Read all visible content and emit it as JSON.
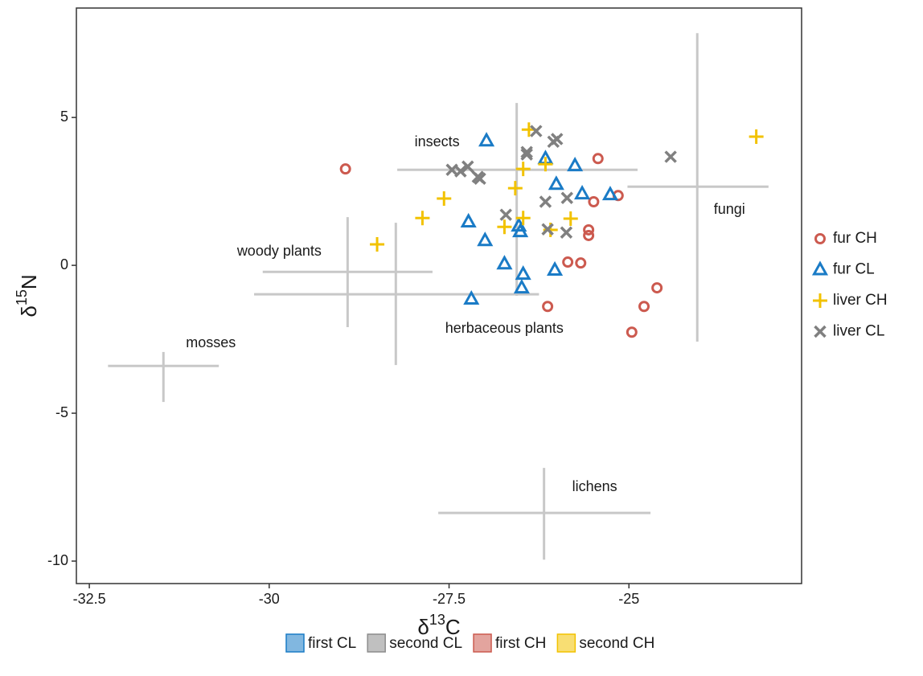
{
  "chart_data": {
    "type": "scatter",
    "xlabel": {
      "symbol": "δ",
      "superscript": "13",
      "element": "C"
    },
    "ylabel": {
      "symbol": "δ",
      "superscript": "15",
      "element": "N"
    },
    "xlim": [
      -32.68,
      -22.6
    ],
    "ylim": [
      -10.76,
      8.7
    ],
    "xticks": [
      -32.5,
      -30,
      -27.5,
      -25
    ],
    "yticks": [
      -10,
      -5,
      0,
      5
    ],
    "grid": false,
    "legend_position": "right",
    "source_color": "#c8c8c8",
    "sources": [
      {
        "label": "mosses",
        "x": -31.47,
        "y": -3.4,
        "xrange": [
          -32.24,
          -30.7
        ],
        "yrange": [
          -4.62,
          -2.93
        ]
      },
      {
        "label": "woody plants",
        "x": -28.91,
        "y": -0.22,
        "xrange": [
          -30.09,
          -27.73
        ],
        "yrange": [
          -2.09,
          1.63
        ]
      },
      {
        "label": "herbaceous plants",
        "x": -28.24,
        "y": -0.98,
        "xrange": [
          -30.21,
          -26.25
        ],
        "yrange": [
          -3.37,
          1.44
        ]
      },
      {
        "label": "insects",
        "x": -26.56,
        "y": 3.23,
        "xrange": [
          -28.22,
          -24.88
        ],
        "yrange": [
          -1.03,
          5.49
        ]
      },
      {
        "label": "fungi",
        "x": -24.05,
        "y": 2.66,
        "xrange": [
          -25.02,
          -23.06
        ],
        "yrange": [
          -2.58,
          7.85
        ]
      },
      {
        "label": "lichens",
        "x": -26.18,
        "y": -8.37,
        "xrange": [
          -27.65,
          -24.7
        ],
        "yrange": [
          -9.95,
          -6.85
        ]
      }
    ],
    "series": [
      {
        "name": "fur CH",
        "color": "#cc5a4f",
        "marker": "circle",
        "x": [
          -28.94,
          -25.43,
          -25.49,
          -25.15,
          -25.56,
          -25.56,
          -25.85,
          -25.67,
          -26.13,
          -24.61,
          -24.79,
          -24.96
        ],
        "y": [
          3.26,
          3.61,
          2.15,
          2.36,
          1.2,
          1.01,
          0.11,
          0.08,
          -1.39,
          -0.76,
          -1.39,
          -2.26
        ]
      },
      {
        "name": "fur CL",
        "color": "#1a7bc6",
        "marker": "triangle",
        "x": [
          -26.98,
          -26.16,
          -25.75,
          -26.01,
          -25.65,
          -25.26,
          -27.23,
          -26.53,
          -26.51,
          -27.0,
          -26.73,
          -26.03,
          -26.47,
          -26.49,
          -27.19
        ],
        "y": [
          4.21,
          3.61,
          3.37,
          2.74,
          2.42,
          2.39,
          1.47,
          1.33,
          1.14,
          0.84,
          0.05,
          -0.16,
          -0.3,
          -0.76,
          -1.14
        ]
      },
      {
        "name": "liver CH",
        "color": "#f2c200",
        "marker": "plus",
        "x": [
          -23.23,
          -26.39,
          -26.47,
          -26.16,
          -26.58,
          -27.57,
          -27.87,
          -26.47,
          -26.73,
          -25.81,
          -26.09,
          -28.5
        ],
        "y": [
          4.35,
          4.59,
          3.26,
          3.42,
          2.61,
          2.26,
          1.6,
          1.6,
          1.3,
          1.58,
          1.2,
          0.71
        ]
      },
      {
        "name": "liver CL",
        "color": "#808080",
        "marker": "x",
        "x": [
          -26.29,
          -26.0,
          -26.05,
          -26.42,
          -26.42,
          -24.42,
          -27.46,
          -27.34,
          -27.24,
          -27.1,
          -27.07,
          -25.86,
          -26.16,
          -26.71,
          -26.13,
          -25.87
        ],
        "y": [
          4.54,
          4.27,
          4.18,
          3.83,
          3.75,
          3.67,
          3.23,
          3.18,
          3.34,
          2.99,
          2.93,
          2.28,
          2.15,
          1.71,
          1.22,
          1.11
        ]
      }
    ],
    "fill_legend": [
      {
        "name": "first CL",
        "color": "#1a7bc6"
      },
      {
        "name": "second CL",
        "color": "#8c8c8c"
      },
      {
        "name": "first CH",
        "color": "#cc5a4f"
      },
      {
        "name": "second CH",
        "color": "#f2c200"
      }
    ]
  }
}
